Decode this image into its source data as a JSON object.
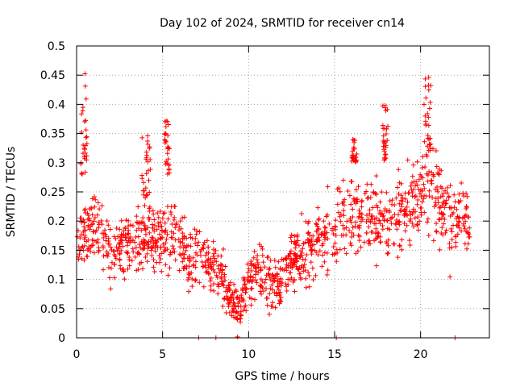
{
  "chart_data": {
    "type": "scatter",
    "title": "Day 102 of 2024, SRMTID for receiver cn14",
    "xlabel": "GPS time / hours",
    "ylabel": "SRMTID / TECUs",
    "xlim": [
      0,
      24
    ],
    "ylim": [
      0,
      0.5
    ],
    "xticks": [
      0,
      5,
      10,
      15,
      20
    ],
    "xtick_labels": [
      "0",
      "5",
      "10",
      "15",
      "20"
    ],
    "yticks": [
      0,
      0.05,
      0.1,
      0.15,
      0.2,
      0.25,
      0.3,
      0.35,
      0.4,
      0.45,
      0.5
    ],
    "ytick_labels": [
      "0",
      "0.05",
      "0.1",
      "0.15",
      "0.2",
      "0.25",
      "0.3",
      "0.35",
      "0.4",
      "0.45",
      "0.5"
    ],
    "grid": true,
    "marker": "+",
    "color": "#ff0000",
    "series": [
      {
        "name": "SRMTID",
        "profile_x": [
          0,
          0.5,
          1,
          1.5,
          2,
          2.5,
          3,
          3.5,
          4,
          4.5,
          5,
          5.5,
          6,
          6.5,
          7,
          7.5,
          8,
          8.5,
          9,
          9.5,
          10,
          10.5,
          11,
          11.5,
          12,
          12.5,
          13,
          13.5,
          14,
          14.5,
          15,
          15.5,
          16,
          16.5,
          17,
          17.5,
          18,
          18.5,
          19,
          19.5,
          20,
          20.5,
          21,
          21.5,
          22,
          22.5,
          22.9
        ],
        "profile_y": [
          0.16,
          0.18,
          0.19,
          0.16,
          0.14,
          0.16,
          0.17,
          0.16,
          0.17,
          0.17,
          0.17,
          0.18,
          0.16,
          0.14,
          0.15,
          0.13,
          0.12,
          0.1,
          0.06,
          0.05,
          0.09,
          0.12,
          0.1,
          0.09,
          0.1,
          0.13,
          0.14,
          0.15,
          0.17,
          0.17,
          0.18,
          0.21,
          0.21,
          0.2,
          0.22,
          0.2,
          0.2,
          0.21,
          0.22,
          0.23,
          0.25,
          0.26,
          0.24,
          0.21,
          0.19,
          0.22,
          0.18
        ],
        "spread": 0.04,
        "point_count": 1350,
        "spikes": [
          {
            "x": [
              0.25,
              0.6
            ],
            "y": [
              0.28,
              0.46
            ]
          },
          {
            "x": [
              3.8,
              4.3
            ],
            "y": [
              0.24,
              0.35
            ]
          },
          {
            "x": [
              5.1,
              5.4
            ],
            "y": [
              0.28,
              0.38
            ]
          },
          {
            "x": [
              17.8,
              18.1
            ],
            "y": [
              0.3,
              0.4
            ]
          },
          {
            "x": [
              20.2,
              20.6
            ],
            "y": [
              0.32,
              0.45
            ]
          },
          {
            "x": [
              16.0,
              16.3
            ],
            "y": [
              0.3,
              0.34
            ]
          }
        ],
        "zero_points": [
          7.1,
          8.1,
          15.1,
          22.0
        ]
      }
    ]
  }
}
